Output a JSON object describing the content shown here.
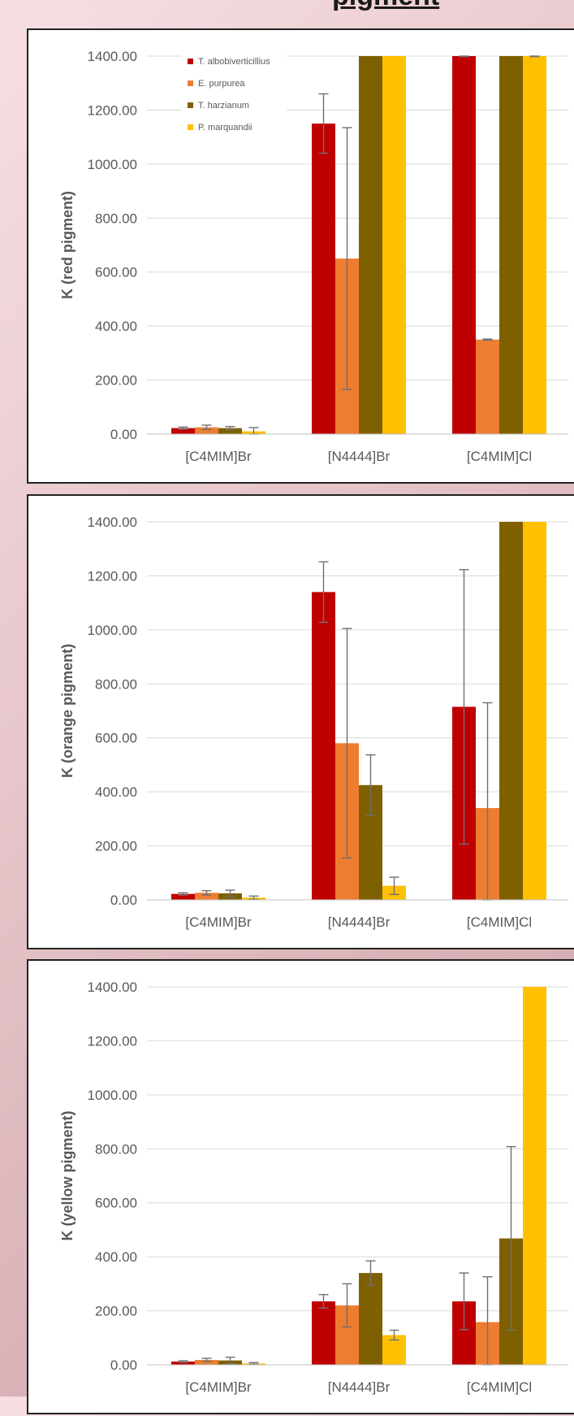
{
  "page": {
    "heading": "pigment"
  },
  "colors": {
    "T_albo": "#c00000",
    "E_purp": "#ed7d31",
    "T_harz": "#7f6000",
    "P_marq": "#ffc000"
  },
  "chart_data": [
    {
      "type": "bar",
      "categories": [
        "[C4MIM]Br",
        "[N4444]Br",
        "[C4MIM]Cl"
      ],
      "ylabel": "K (red pigment)",
      "ylim": [
        0,
        1400
      ],
      "yticks": [
        "0.00",
        "200.00",
        "400.00",
        "600.00",
        "800.00",
        "1000.00",
        "1200.00",
        "1400.00"
      ],
      "legend": "top-left",
      "series": [
        {
          "name": "T. albobiverticillius",
          "values": [
            22,
            1150,
            1400
          ],
          "err": [
            4,
            110,
            2
          ]
        },
        {
          "name": "E. purpurea",
          "values": [
            25,
            650,
            350
          ],
          "err": [
            8,
            485,
            2
          ]
        },
        {
          "name": "T. harzianum",
          "values": [
            22,
            1400,
            1400
          ],
          "err": [
            6,
            0,
            0
          ]
        },
        {
          "name": "P. marquandii",
          "values": [
            10,
            1400,
            1400
          ],
          "err": [
            14,
            0,
            2
          ]
        }
      ]
    },
    {
      "type": "bar",
      "categories": [
        "[C4MIM]Br",
        "[N4444]Br",
        "[C4MIM]Cl"
      ],
      "ylabel": "K (orange pigment)",
      "ylim": [
        0,
        1400
      ],
      "yticks": [
        "0.00",
        "200.00",
        "400.00",
        "600.00",
        "800.00",
        "1000.00",
        "1200.00",
        "1400.00"
      ],
      "series": [
        {
          "values": [
            22,
            1140,
            715
          ],
          "err": [
            4,
            112,
            508
          ]
        },
        {
          "values": [
            26,
            580,
            340
          ],
          "err": [
            8,
            425,
            390
          ]
        },
        {
          "values": [
            24,
            425,
            1400
          ],
          "err": [
            12,
            112,
            0
          ]
        },
        {
          "values": [
            8,
            52,
            1400
          ],
          "err": [
            6,
            32,
            0
          ]
        }
      ]
    },
    {
      "type": "bar",
      "categories": [
        "[C4MIM]Br",
        "[N4444]Br",
        "[C4MIM]Cl"
      ],
      "ylabel": "K (yellow pigment)",
      "ylim": [
        0,
        1400
      ],
      "yticks": [
        "0.00",
        "200.00",
        "400.00",
        "600.00",
        "800.00",
        "1000.00",
        "1200.00",
        "1400.00"
      ],
      "series": [
        {
          "values": [
            12,
            235,
            235
          ],
          "err": [
            3,
            25,
            105
          ]
        },
        {
          "values": [
            18,
            220,
            158
          ],
          "err": [
            6,
            80,
            168
          ]
        },
        {
          "values": [
            16,
            340,
            468
          ],
          "err": [
            12,
            45,
            340
          ]
        },
        {
          "values": [
            5,
            110,
            1400
          ],
          "err": [
            3,
            18,
            0
          ]
        }
      ]
    }
  ]
}
